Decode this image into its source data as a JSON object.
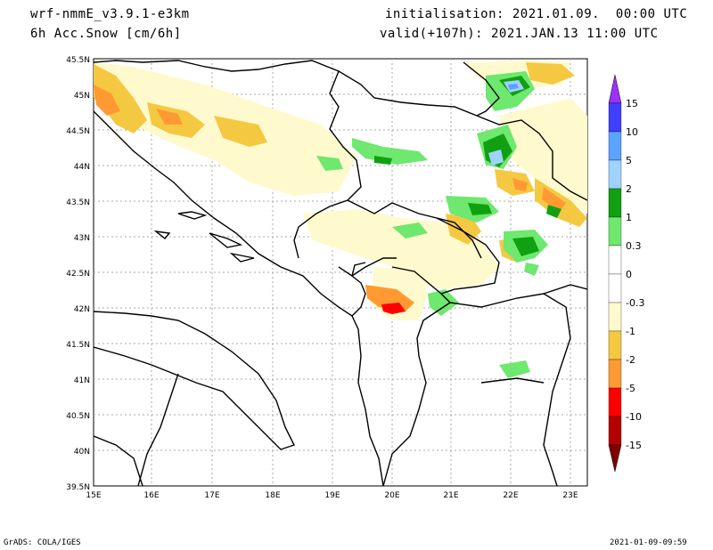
{
  "header": {
    "model": "wrf-nmmE_v3.9.1-e3km",
    "field": "6h Acc.Snow [cm/6h]",
    "init": "initialisation: 2021.01.09.  00:00 UTC",
    "valid": "valid(+107h): 2021.JAN.13 11:00 UTC"
  },
  "footer": {
    "credit": "GrADS: COLA/IGES",
    "timestamp": "2021-01-09-09:59"
  },
  "map": {
    "lat_labels": [
      "45.5N",
      "45N",
      "44.5N",
      "44N",
      "43.5N",
      "43N",
      "42.5N",
      "42N",
      "41.5N",
      "41N",
      "40.5N",
      "40N",
      "39.5N"
    ],
    "lon_labels": [
      "15E",
      "16E",
      "17E",
      "18E",
      "19E",
      "20E",
      "21E",
      "22E",
      "23E"
    ]
  },
  "legend": {
    "levels": [
      "15",
      "10",
      "5",
      "2",
      "1",
      "0.3",
      "0",
      "-0.3",
      "-1",
      "-2",
      "-5",
      "-10",
      "-15"
    ],
    "colors": [
      "#9b30ff",
      "#3f3fff",
      "#5ca2ff",
      "#a0d2ff",
      "#11a011",
      "#6ee86e",
      "#ffffff",
      "#fffacd",
      "#f5c842",
      "#ff9a33",
      "#ff0000",
      "#b30000"
    ]
  }
}
